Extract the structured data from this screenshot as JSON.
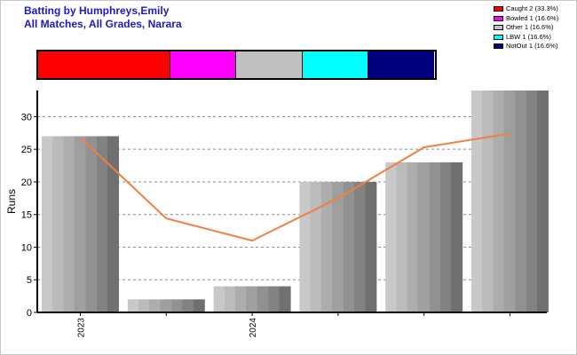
{
  "title_line1": "Batting by Humphreys,Emily",
  "title_line2": "All Matches, All Grades, Narara",
  "legend": [
    {
      "label": "Caught 2 (33.3%)",
      "color": "#ff0000"
    },
    {
      "label": "Bowled 1 (16.6%)",
      "color": "#ff00ff"
    },
    {
      "label": "Other 1 (16.6%)",
      "color": "#c0c0c0"
    },
    {
      "label": "LBW 1 (16.6%)",
      "color": "#00ffff"
    },
    {
      "label": "NotOut 1 (16.6%)",
      "color": "#000080"
    }
  ],
  "dismissals": [
    {
      "name": "Caught",
      "share": 0.333,
      "color": "#ff0000"
    },
    {
      "name": "Bowled",
      "share": 0.166,
      "color": "#ff00ff"
    },
    {
      "name": "Other",
      "share": 0.166,
      "color": "#c0c0c0"
    },
    {
      "name": "LBW",
      "share": 0.166,
      "color": "#00ffff"
    },
    {
      "name": "NotOut",
      "share": 0.166,
      "color": "#000080"
    }
  ],
  "chart_data": {
    "type": "bar",
    "ylabel": "Runs",
    "ylim": [
      0,
      34
    ],
    "yticks": [
      0,
      5,
      10,
      15,
      20,
      25,
      30
    ],
    "grid": true,
    "bar_values": [
      27,
      2,
      4,
      20,
      23,
      34
    ],
    "x_tick_labels": [
      {
        "bar_index": 0,
        "label": "2023"
      },
      {
        "bar_index": 2,
        "label": "2024"
      }
    ],
    "series": [
      {
        "kind": "line",
        "color": "#f08040",
        "values": [
          26.8,
          14.4,
          11.0,
          17.5,
          25.3,
          27.4
        ]
      }
    ]
  }
}
